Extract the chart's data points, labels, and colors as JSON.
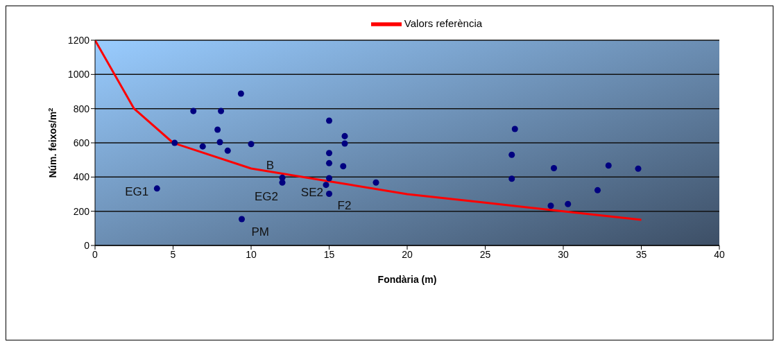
{
  "chart_data": {
    "type": "scatter",
    "xlabel": "Fondària (m)",
    "ylabel": "Núm. feixos/m$^{2}$",
    "xlim": [
      0,
      40
    ],
    "xticks": [
      0,
      5,
      10,
      15,
      20,
      25,
      30,
      35,
      40
    ],
    "ylim": [
      0,
      1200
    ],
    "yticks": [
      0,
      200,
      400,
      600,
      800,
      1000,
      1200
    ],
    "grid": "y",
    "legend": "top right",
    "series": [
      {
        "type": "scatter",
        "color": "#000080",
        "marker": "circle",
        "x": [
          3.97,
          9.35,
          6.3,
          8.07,
          7.85,
          5.1,
          6.9,
          8.0,
          8.5,
          10.0,
          12.0,
          12.0,
          15.0,
          16.0,
          16.0,
          15.0,
          15.0,
          15.9,
          15.0,
          14.8,
          15.0,
          9.4,
          18.0,
          26.9,
          26.7,
          26.7,
          29.4,
          29.2,
          30.3,
          32.2,
          32.9,
          34.8
        ],
        "values": [
          333,
          888,
          786,
          786,
          677,
          600,
          579,
          604,
          554,
          593,
          396,
          368,
          730,
          639,
          596,
          540,
          481,
          463,
          393,
          354,
          302,
          154,
          368,
          681,
          530,
          390,
          452,
          232,
          242,
          323,
          467,
          449
        ]
      },
      {
        "type": "line",
        "name": "Valors referència",
        "color": "#ff0000",
        "marker": "none",
        "line_style": "solid",
        "x": [
          0,
          2.5,
          5,
          10,
          15,
          20,
          25,
          30,
          35
        ],
        "values": [
          1200,
          800,
          600,
          450,
          375,
          300,
          250,
          200,
          150
        ]
      }
    ],
    "annotations": [
      {
        "text": "EG1",
        "x": 3.97,
        "y": 333
      },
      {
        "text": "B",
        "x": 12.0,
        "y": 396
      },
      {
        "text": "EG2",
        "x": 12.0,
        "y": 368
      },
      {
        "text": "SE2",
        "x": 14.8,
        "y": 354
      },
      {
        "text": "F2",
        "x": 15.0,
        "y": 302
      },
      {
        "text": "PM",
        "x": 9.4,
        "y": 154
      }
    ]
  }
}
